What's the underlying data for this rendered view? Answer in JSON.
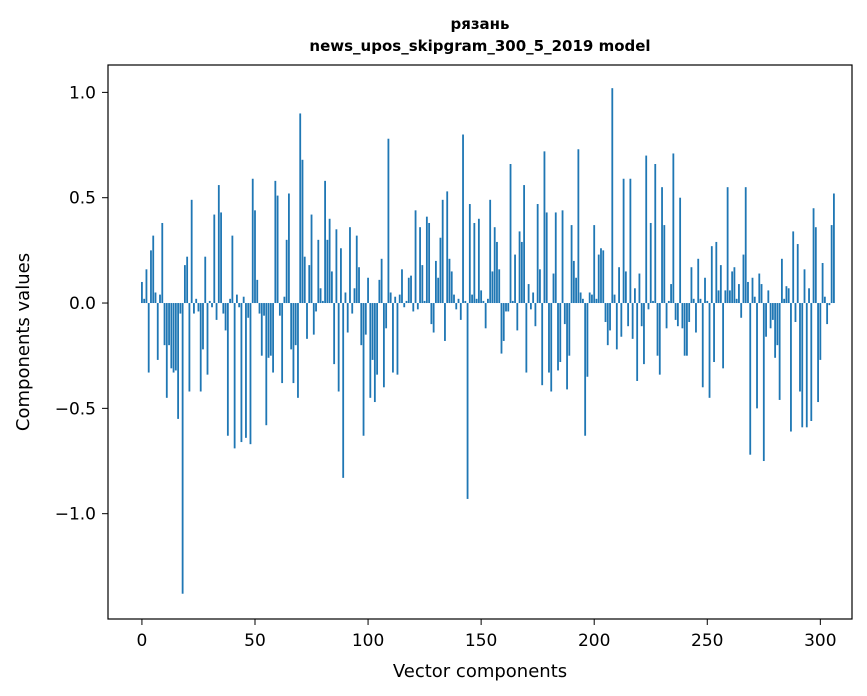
{
  "chart_data": {
    "type": "bar",
    "title_line1": "рязань",
    "title_line2": "news_upos_skipgram_300_5_2019 model",
    "xlabel": "Vector components",
    "ylabel": "Components values",
    "xlim": [
      -15,
      314
    ],
    "ylim": [
      -1.5,
      1.13
    ],
    "xticks": [
      0,
      50,
      100,
      150,
      200,
      250,
      300
    ],
    "xtick_labels": [
      "0",
      "50",
      "100",
      "150",
      "200",
      "250",
      "300"
    ],
    "yticks": [
      1.0,
      0.5,
      0.0,
      -0.5,
      -1.0
    ],
    "ytick_labels": [
      "1.0",
      "0.5",
      "0.0",
      "−0.5",
      "−1.0"
    ],
    "bar_color": "#1f77b4",
    "grid": false,
    "values": [
      0.1,
      0.02,
      0.16,
      -0.33,
      0.25,
      0.32,
      0.05,
      -0.27,
      0.04,
      0.38,
      -0.2,
      -0.45,
      -0.2,
      -0.31,
      -0.33,
      -0.32,
      -0.55,
      -0.05,
      -1.38,
      0.18,
      0.22,
      -0.42,
      0.49,
      -0.05,
      0.02,
      -0.04,
      -0.42,
      -0.22,
      0.22,
      -0.34,
      0.01,
      -0.02,
      0.42,
      -0.08,
      0.56,
      0.43,
      -0.05,
      -0.13,
      -0.63,
      0.02,
      0.32,
      -0.69,
      0.04,
      -0.02,
      -0.66,
      0.03,
      -0.64,
      -0.07,
      -0.67,
      0.59,
      0.44,
      0.11,
      -0.05,
      -0.25,
      -0.06,
      -0.58,
      -0.26,
      -0.25,
      -0.33,
      0.58,
      0.51,
      -0.06,
      -0.38,
      0.03,
      0.3,
      0.52,
      -0.22,
      -0.38,
      -0.2,
      -0.45,
      0.9,
      0.68,
      0.22,
      -0.17,
      0.18,
      0.42,
      -0.15,
      -0.04,
      0.3,
      0.07,
      0.01,
      0.58,
      0.3,
      0.4,
      0.15,
      -0.29,
      0.35,
      -0.42,
      0.26,
      -0.83,
      0.05,
      -0.14,
      0.36,
      -0.05,
      0.07,
      0.32,
      0.17,
      -0.2,
      -0.63,
      -0.15,
      0.12,
      -0.45,
      -0.27,
      -0.47,
      -0.34,
      0.11,
      0.21,
      -0.4,
      -0.12,
      0.78,
      0.05,
      -0.33,
      0.03,
      -0.34,
      0.04,
      0.16,
      -0.02,
      0.01,
      0.12,
      0.13,
      -0.04,
      0.44,
      -0.03,
      0.36,
      0.18,
      0.01,
      0.41,
      0.38,
      -0.1,
      -0.14,
      0.2,
      0.12,
      0.31,
      0.49,
      -0.18,
      0.53,
      0.21,
      0.15,
      0.04,
      -0.03,
      0.02,
      -0.08,
      0.8,
      0.01,
      -0.93,
      0.47,
      0.04,
      0.38,
      0.02,
      0.4,
      0.06,
      0.01,
      -0.12,
      0.02,
      0.49,
      0.15,
      0.36,
      0.29,
      0.16,
      -0.24,
      -0.18,
      -0.04,
      -0.04,
      0.66,
      0.01,
      0.23,
      -0.13,
      0.34,
      0.29,
      0.56,
      -0.33,
      0.09,
      -0.03,
      0.05,
      -0.11,
      0.47,
      0.16,
      -0.39,
      0.72,
      0.43,
      -0.33,
      -0.42,
      0.14,
      0.43,
      -0.32,
      -0.28,
      0.44,
      -0.1,
      -0.41,
      -0.25,
      0.37,
      0.2,
      0.12,
      0.73,
      0.05,
      0.02,
      -0.63,
      -0.35,
      0.05,
      0.04,
      0.37,
      0.02,
      0.23,
      0.26,
      0.25,
      -0.09,
      -0.2,
      -0.13,
      1.02,
      0.04,
      -0.22,
      0.17,
      -0.16,
      0.59,
      0.15,
      -0.11,
      0.59,
      -0.17,
      0.07,
      -0.37,
      0.14,
      -0.11,
      -0.29,
      0.7,
      -0.03,
      0.38,
      0.01,
      0.66,
      -0.25,
      -0.34,
      0.55,
      0.37,
      -0.12,
      0.01,
      0.09,
      0.71,
      -0.08,
      -0.11,
      0.5,
      -0.12,
      -0.25,
      -0.25,
      -0.09,
      0.17,
      0.02,
      -0.14,
      0.21,
      0.02,
      -0.4,
      0.12,
      0.01,
      -0.45,
      0.27,
      -0.28,
      0.29,
      0.06,
      0.18,
      -0.31,
      0.06,
      0.55,
      0.06,
      0.15,
      0.17,
      0.02,
      0.09,
      -0.07,
      0.23,
      0.55,
      0.1,
      -0.72,
      0.12,
      0.03,
      -0.5,
      0.14,
      0.09,
      -0.75,
      -0.16,
      0.06,
      -0.12,
      -0.08,
      -0.26,
      -0.2,
      -0.46,
      0.21,
      0.02,
      0.08,
      0.07,
      -0.61,
      0.34,
      -0.09,
      0.28,
      -0.42,
      -0.59,
      0.16,
      -0.59,
      0.07,
      -0.56,
      0.45,
      0.36,
      -0.47,
      -0.27,
      0.19,
      0.03,
      -0.1,
      -0.01,
      0.37,
      0.52
    ]
  }
}
